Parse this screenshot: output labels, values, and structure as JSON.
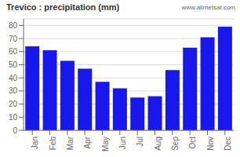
{
  "chart_data": {
    "type": "bar",
    "title": "Trevico : precipitation (mm)",
    "categories": [
      "Jan",
      "Feb",
      "Mar",
      "Apr",
      "May",
      "Jun",
      "Jul",
      "Aug",
      "Sep",
      "Oct",
      "Nov",
      "Dec"
    ],
    "values": [
      64,
      61,
      53,
      47,
      37,
      32,
      25,
      26,
      46,
      63,
      71,
      79
    ],
    "color": "#1818ee",
    "ylim": [
      0,
      85
    ],
    "yticks": [
      0,
      10,
      20,
      30,
      40,
      50,
      60,
      70,
      80
    ],
    "grid": true,
    "annotations": [
      "www.allmetsat.com"
    ]
  }
}
